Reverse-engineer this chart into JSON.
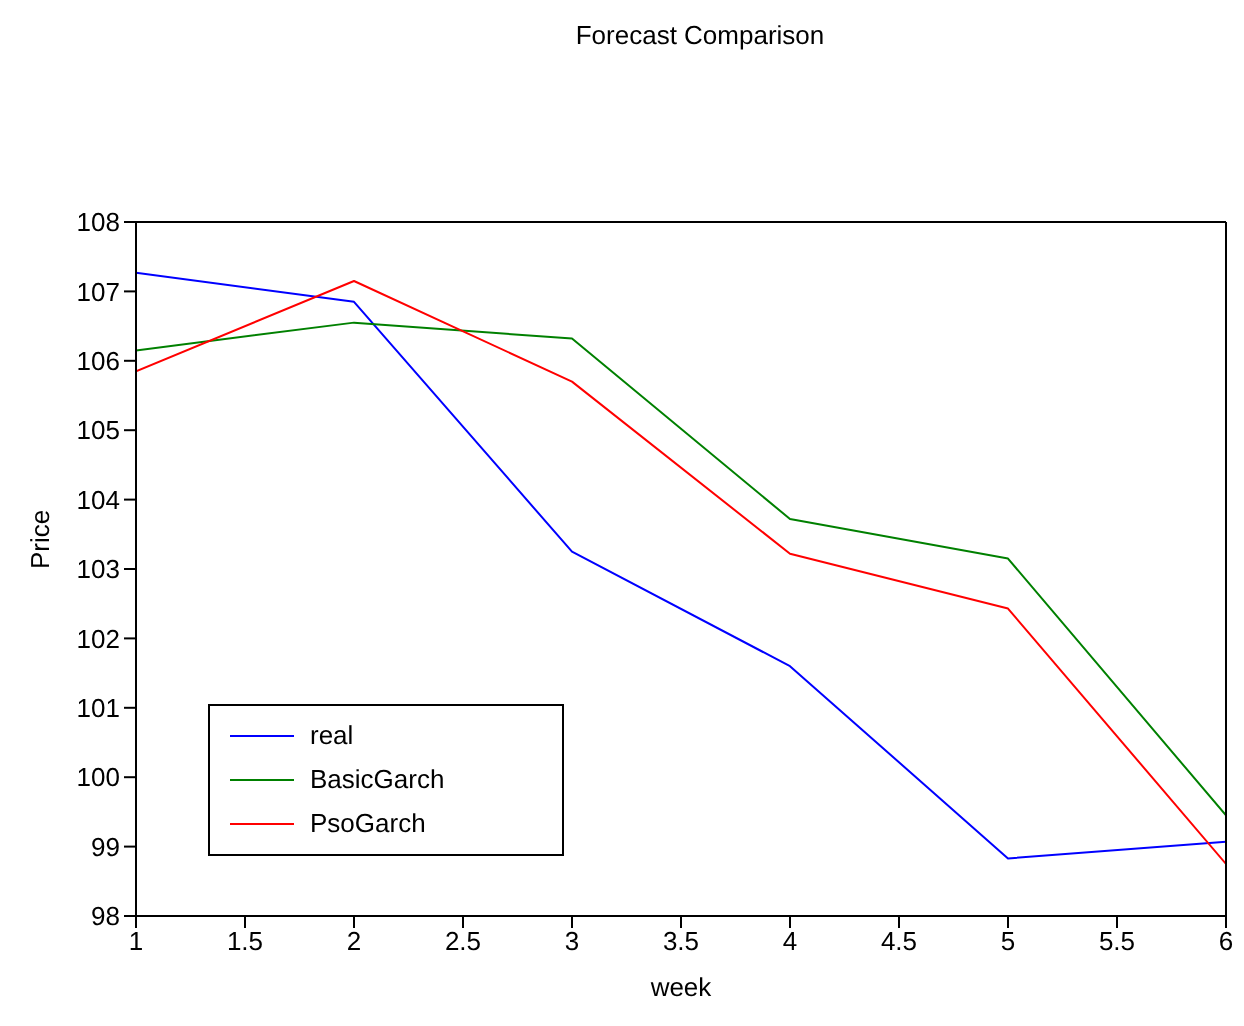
{
  "chart_data": {
    "type": "line",
    "title": "Forecast Comparison",
    "xlabel": "week",
    "ylabel": "Price",
    "x": [
      1,
      2,
      3,
      4,
      5,
      6
    ],
    "series": [
      {
        "name": "real",
        "color": "#0000ff",
        "values": [
          107.27,
          106.85,
          103.25,
          101.6,
          98.83,
          99.07
        ]
      },
      {
        "name": "BasicGarch",
        "color": "#008000",
        "values": [
          106.15,
          106.55,
          106.32,
          103.72,
          103.15,
          99.45
        ]
      },
      {
        "name": "PsoGarch",
        "color": "#ff0000",
        "values": [
          105.85,
          107.15,
          105.7,
          103.22,
          102.43,
          98.75
        ]
      }
    ],
    "xlim": [
      1,
      6
    ],
    "xticks": [
      1,
      1.5,
      2,
      2.5,
      3,
      3.5,
      4,
      4.5,
      5,
      5.5,
      6
    ],
    "ylim": [
      98,
      108
    ],
    "yticks": [
      98,
      99,
      100,
      101,
      102,
      103,
      104,
      105,
      106,
      107,
      108
    ],
    "grid": false,
    "legend": "bottom left",
    "marker": "none",
    "line_style": "solid"
  }
}
